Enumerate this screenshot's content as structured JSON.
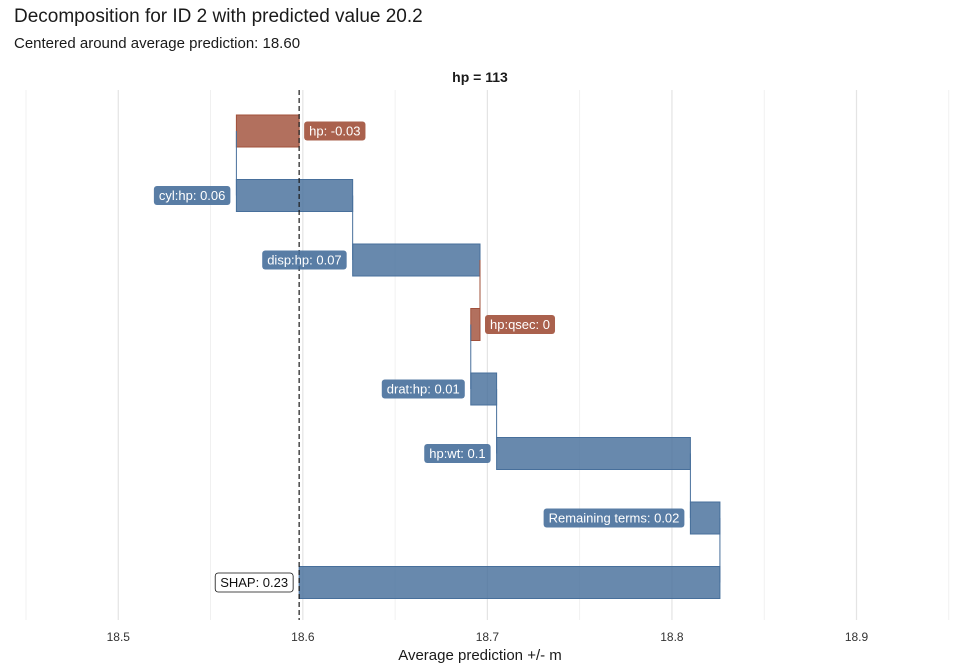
{
  "title": "Decomposition for ID 2 with predicted value 20.2",
  "subtitle": "Centered around average prediction: 18.60",
  "chart_data": {
    "type": "bar",
    "subtype": "waterfall",
    "facet_label": "hp = 113",
    "xlabel": "Average prediction +/- m",
    "xlim": [
      18.45,
      18.955
    ],
    "x_ticks": [
      "18.5",
      "18.6",
      "18.7",
      "18.8",
      "18.9"
    ],
    "baseline": 18.598,
    "grid": true,
    "bars": [
      {
        "label": "hp: -0.03",
        "start": 18.598,
        "end": 18.564,
        "color": "#a1503a"
      },
      {
        "label": "cyl:hp: 0.06",
        "start": 18.564,
        "end": 18.627,
        "color": "#476f9b"
      },
      {
        "label": "disp:hp: 0.07",
        "start": 18.627,
        "end": 18.696,
        "color": "#476f9b"
      },
      {
        "label": "hp:qsec: 0",
        "start": 18.696,
        "end": 18.691,
        "color": "#a1503a"
      },
      {
        "label": "drat:hp: 0.01",
        "start": 18.691,
        "end": 18.705,
        "color": "#476f9b"
      },
      {
        "label": "hp:wt: 0.1",
        "start": 18.705,
        "end": 18.81,
        "color": "#476f9b"
      },
      {
        "label": "Remaining terms: 0.02",
        "start": 18.81,
        "end": 18.826,
        "color": "#476f9b"
      },
      {
        "label": "SHAP: 0.23",
        "start": 18.598,
        "end": 18.826,
        "color": "#476f9b",
        "total": true
      }
    ]
  }
}
